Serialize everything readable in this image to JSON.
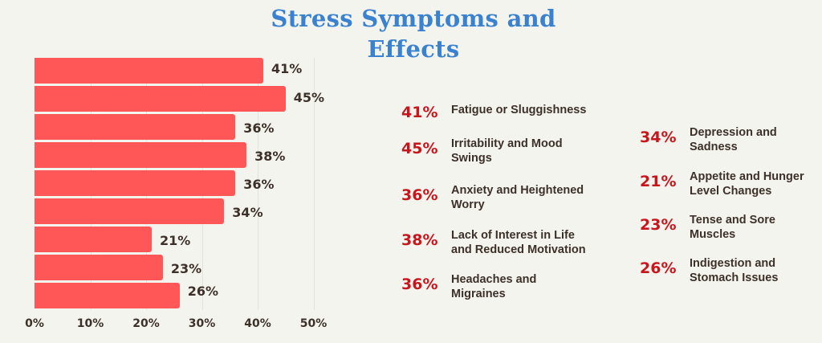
{
  "title": "Stress Symptoms and Effects",
  "colors": {
    "bar": "#ff5757",
    "title": "#3a82cf",
    "legend_pct": "#c8161d",
    "text": "#3d3028",
    "background": "#f4f4ef"
  },
  "chart_data": {
    "type": "bar",
    "orientation": "horizontal",
    "title": "Stress Symptoms and Effects",
    "categories": [
      "Fatigue or Sluggishness",
      "Irritability and Mood Swings",
      "Anxiety and Heightened Worry",
      "Lack of Interest in Life and Reduced Motivation",
      "Headaches and Migraines",
      "Depression and Sadness",
      "Appetite and Hunger Level Changes",
      "Tense and Sore Muscles",
      "Indigestion and Stomach Issues"
    ],
    "values": [
      41,
      45,
      36,
      38,
      36,
      34,
      21,
      23,
      26
    ],
    "value_labels": [
      "41%",
      "45%",
      "36%",
      "38%",
      "36%",
      "34%",
      "21%",
      "23%",
      "26%"
    ],
    "xlabel": "",
    "ylabel": "",
    "xlim": [
      0,
      50
    ],
    "x_ticks": [
      "0%",
      "10%",
      "20%",
      "30%",
      "40%",
      "50%"
    ],
    "grid": true,
    "legend_position": "right"
  },
  "legend": {
    "left_column": [
      {
        "pct": "41%",
        "lines": [
          "Fatigue or Sluggishness"
        ]
      },
      {
        "pct": "45%",
        "lines": [
          "Irritability and Mood",
          "Swings"
        ]
      },
      {
        "pct": "36%",
        "lines": [
          "Anxiety and Heightened",
          "Worry"
        ]
      },
      {
        "pct": "38%",
        "lines": [
          "Lack of Interest in Life",
          "and Reduced Motivation"
        ]
      },
      {
        "pct": "36%",
        "lines": [
          "Headaches and",
          "Migraines"
        ]
      }
    ],
    "right_column": [
      {
        "pct": "34%",
        "lines": [
          "Depression and",
          "Sadness"
        ]
      },
      {
        "pct": "21%",
        "lines": [
          "Appetite and Hunger",
          "Level Changes"
        ]
      },
      {
        "pct": "23%",
        "lines": [
          "Tense and Sore",
          "Muscles"
        ]
      },
      {
        "pct": "26%",
        "lines": [
          "Indigestion and",
          "Stomach Issues"
        ]
      }
    ]
  }
}
